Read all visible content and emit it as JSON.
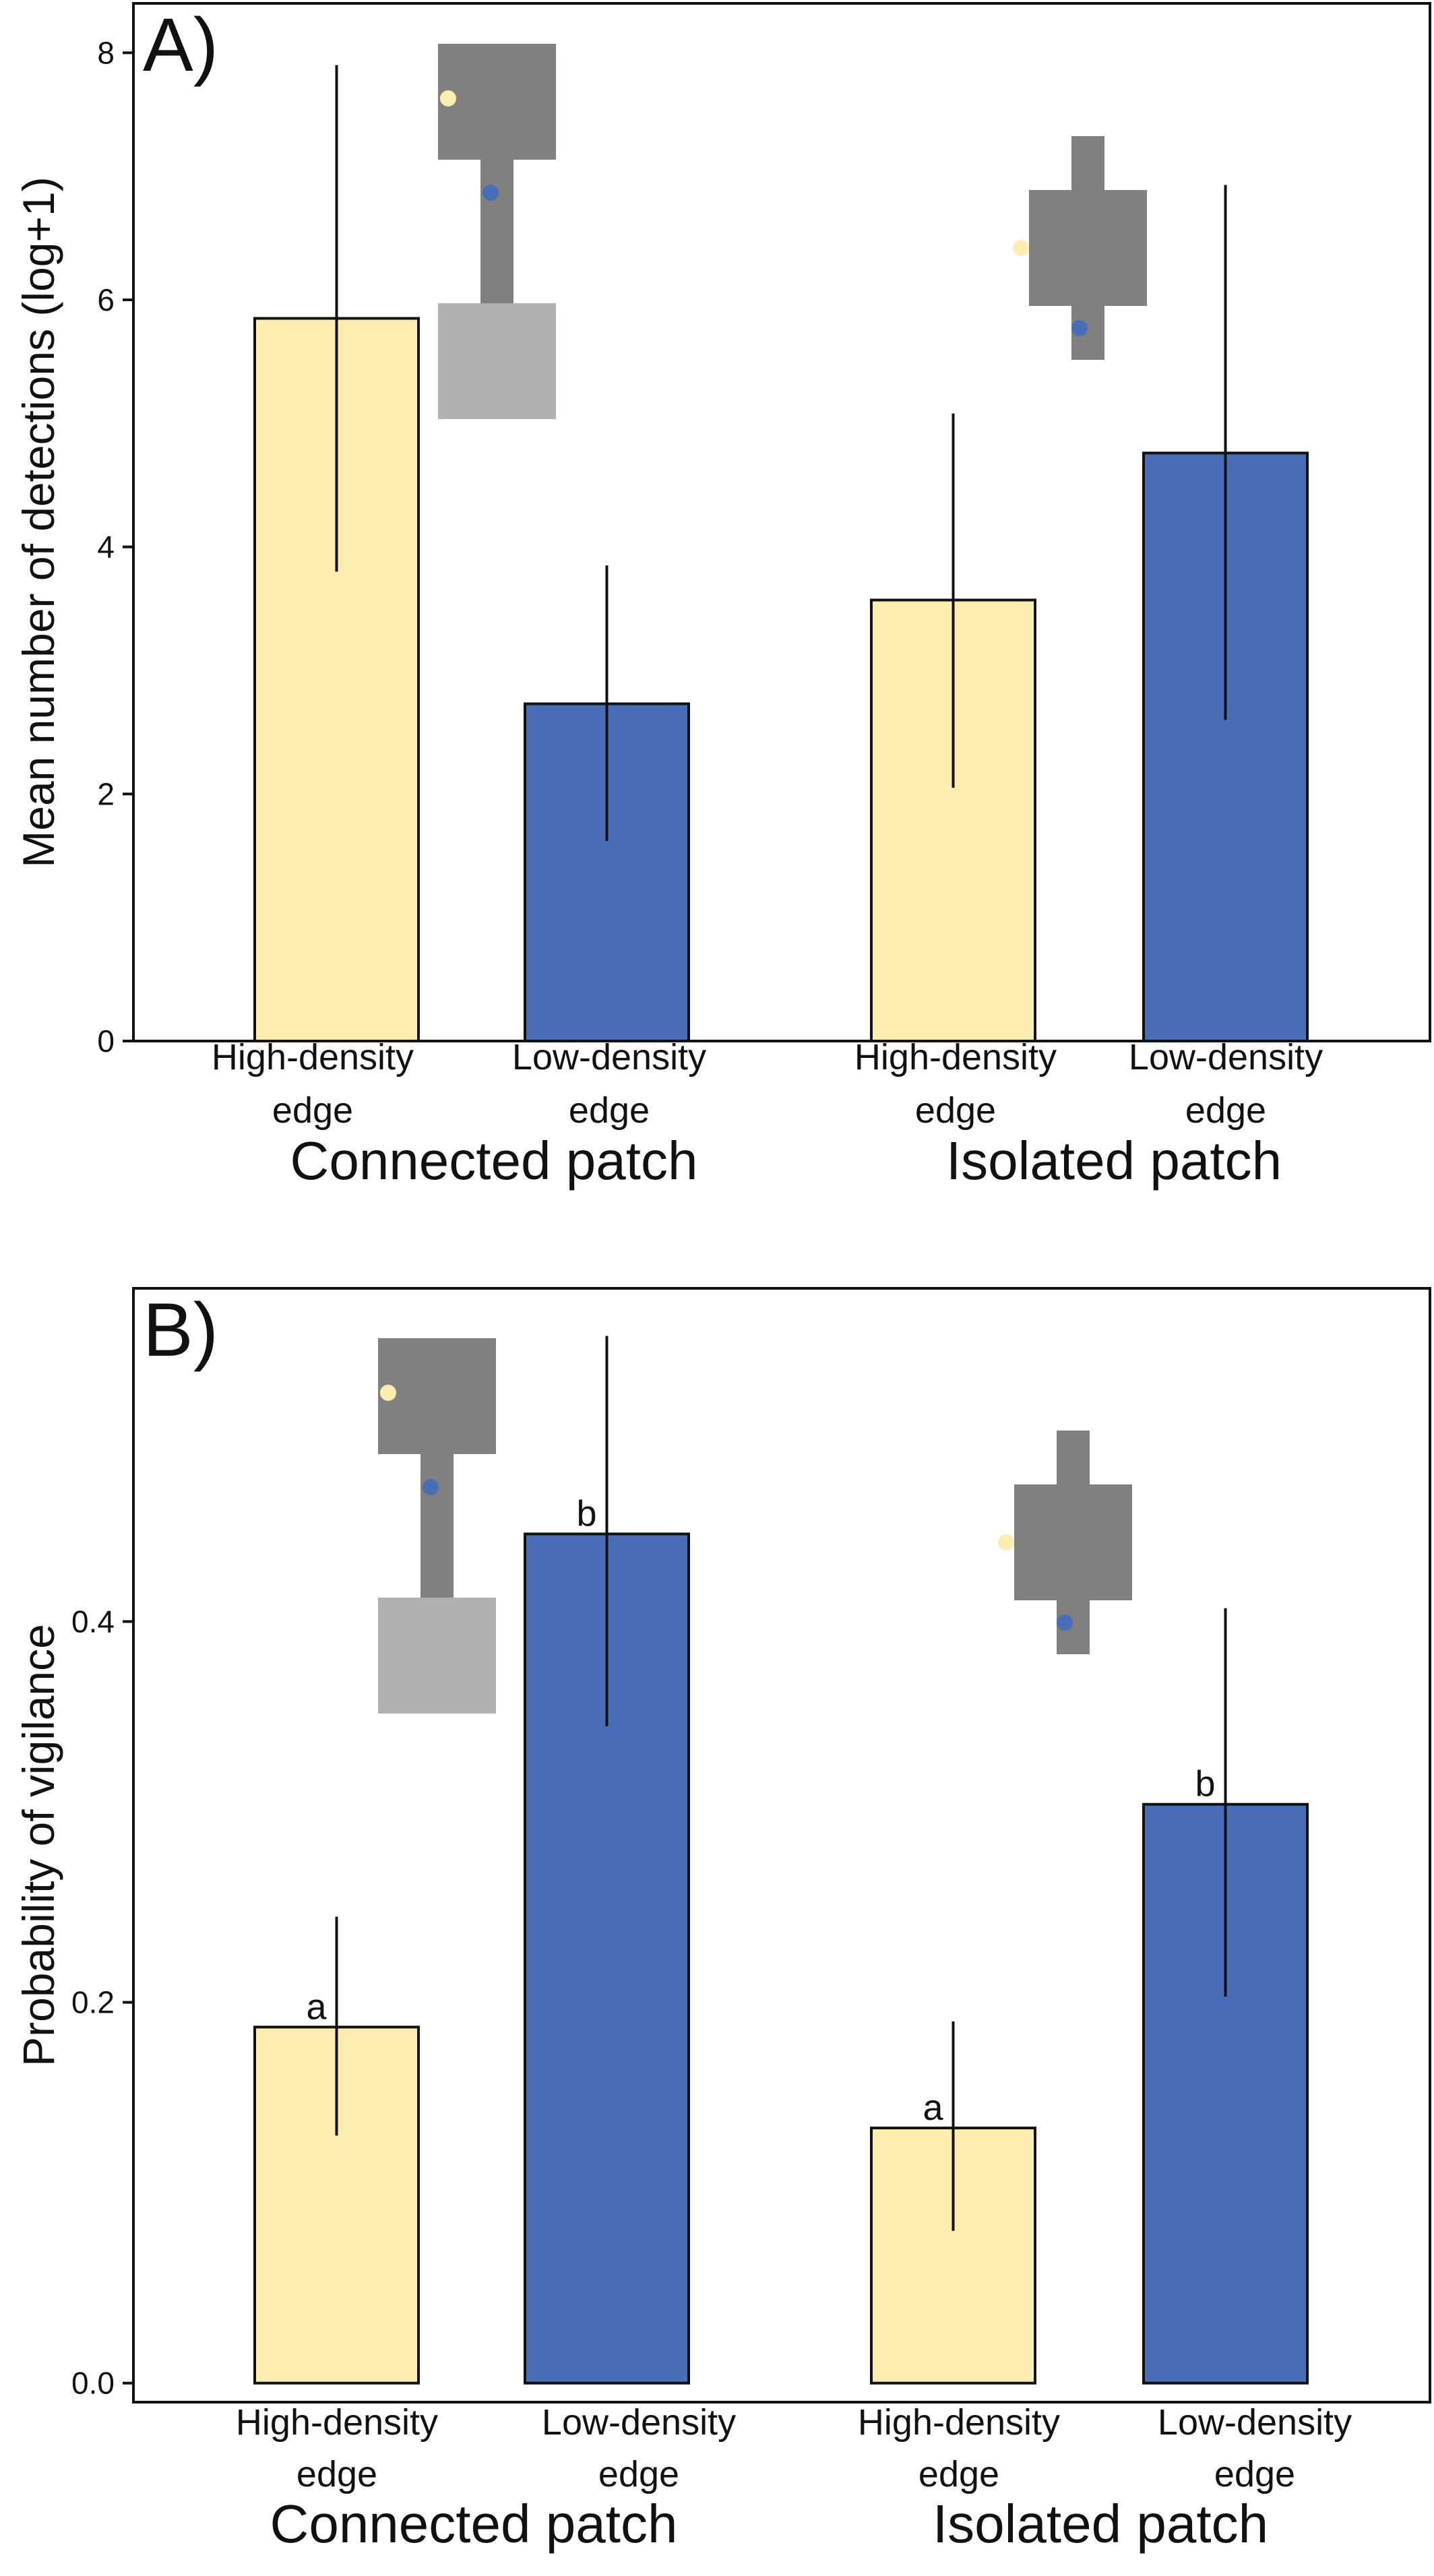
{
  "chart_data": [
    {
      "type": "bar",
      "panel_label": "A)",
      "ylabel": "Mean number of detections (log+1)",
      "ylim": [
        0,
        8.4
      ],
      "yticks": [
        "0",
        "2",
        "4",
        "6",
        "8"
      ],
      "ytick_values": [
        0,
        2,
        4,
        6,
        8
      ],
      "groups": [
        {
          "label": "Connected patch",
          "categories": [
            "High-density edge",
            "Low-density edge"
          ]
        },
        {
          "label": "Isolated patch",
          "categories": [
            "High-density edge",
            "Low-density edge"
          ]
        }
      ],
      "bars": [
        {
          "group": "Connected patch",
          "category": "High-density edge",
          "value": 5.85,
          "lower": 3.8,
          "upper": 7.9,
          "color": "#FDEDB0",
          "letter": ""
        },
        {
          "group": "Connected patch",
          "category": "Low-density edge",
          "value": 2.73,
          "lower": 1.62,
          "upper": 3.85,
          "color": "#4A6DB7",
          "letter": ""
        },
        {
          "group": "Isolated patch",
          "category": "High-density edge",
          "value": 3.57,
          "lower": 2.05,
          "upper": 5.08,
          "color": "#FDEDB0",
          "letter": ""
        },
        {
          "group": "Isolated patch",
          "category": "Low-density edge",
          "value": 4.76,
          "lower": 2.6,
          "upper": 6.93,
          "color": "#4A6DB7",
          "letter": ""
        }
      ],
      "grid": false,
      "legend": "none"
    },
    {
      "type": "bar",
      "panel_label": "B)",
      "ylabel": "Probability of vigilance",
      "ylim": [
        -0.01,
        0.575
      ],
      "yticks": [
        "0.0",
        "0.2",
        "0.4"
      ],
      "ytick_values": [
        0,
        0.2,
        0.4
      ],
      "groups": [
        {
          "label": "Connected patch",
          "categories": [
            "High-density edge",
            "Low-density edge"
          ]
        },
        {
          "label": "Isolated patch",
          "categories": [
            "High-density edge",
            "Low-density edge"
          ]
        }
      ],
      "bars": [
        {
          "group": "Connected patch",
          "category": "High-density edge",
          "value": 0.187,
          "lower": 0.13,
          "upper": 0.245,
          "color": "#FDEDB0",
          "letter": "a"
        },
        {
          "group": "Connected patch",
          "category": "Low-density edge",
          "value": 0.446,
          "lower": 0.345,
          "upper": 0.55,
          "color": "#4A6DB7",
          "letter": "b"
        },
        {
          "group": "Isolated patch",
          "category": "High-density edge",
          "value": 0.134,
          "lower": 0.08,
          "upper": 0.19,
          "color": "#FDEDB0",
          "letter": "a"
        },
        {
          "group": "Isolated patch",
          "category": "Low-density edge",
          "value": 0.304,
          "lower": 0.203,
          "upper": 0.407,
          "color": "#4A6DB7",
          "letter": "b"
        }
      ],
      "grid": false,
      "legend": "none"
    }
  ],
  "colors": {
    "high_density": "#FDEDB0",
    "low_density": "#4A6DB7",
    "patch_dark": "#808080",
    "patch_light": "#B0B0B0",
    "axis": "#111111"
  },
  "insets": [
    {
      "panel": "A)",
      "icon": "connected-patch-diagram-icon"
    },
    {
      "panel": "A)",
      "icon": "isolated-patch-diagram-icon"
    },
    {
      "panel": "B)",
      "icon": "connected-patch-diagram-icon"
    },
    {
      "panel": "B)",
      "icon": "isolated-patch-diagram-icon"
    }
  ]
}
